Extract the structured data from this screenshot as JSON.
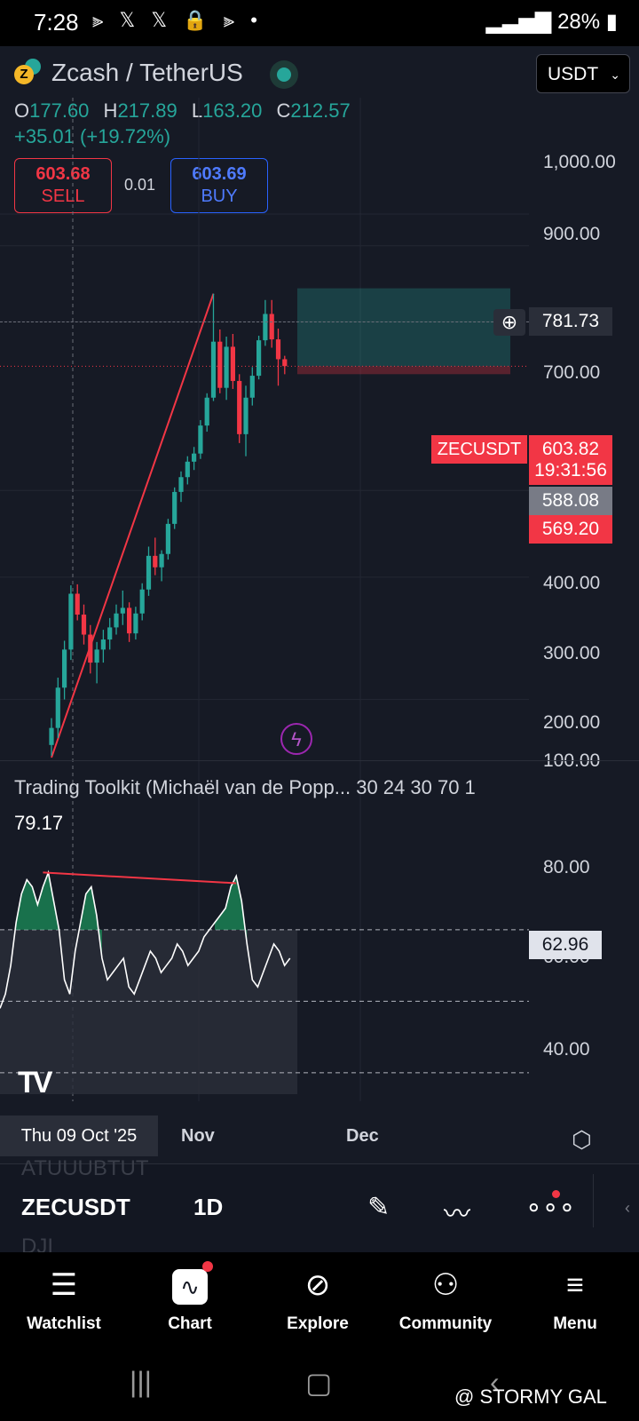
{
  "status_bar": {
    "time": "7:28",
    "notification_icons": "⫸ 𝕏 𝕏 🔒 ⫸ •",
    "battery": "28%"
  },
  "symbol": {
    "title": "Zcash / TetherUS",
    "currency": "USDT"
  },
  "ohlc": {
    "o_label": "O",
    "o": "177.60",
    "h_label": "H",
    "h": "217.89",
    "l_label": "L",
    "l": "163.20",
    "c_label": "C",
    "c": "212.57",
    "change": "+35.01 (+19.72%)"
  },
  "trade": {
    "sell_price": "603.68",
    "sell_label": "SELL",
    "spread": "0.01",
    "buy_price": "603.69",
    "buy_label": "BUY"
  },
  "price_axis": [
    "1,000.00",
    "900.00",
    "700.00",
    "400.00",
    "300.00",
    "200.00",
    "100.00"
  ],
  "price_tags": {
    "crosshair": "781.73",
    "symbol_label": "ZECUSDT",
    "last_price": "603.82",
    "countdown": "19:31:56",
    "level_gray": "588.08",
    "level_red": "569.20"
  },
  "indicator": {
    "title": "Trading Toolkit (Michaël van de Popp... 30 24 30 70 1",
    "value_label": "79.17",
    "axis": [
      "80.00",
      "40.00"
    ],
    "current": "62.96",
    "current_hidden_axis": "60.00"
  },
  "time_axis": {
    "date_tag": "Thu 09 Oct '25",
    "labels": [
      "Nov",
      "Dec"
    ]
  },
  "toolbar": {
    "symbol": "ZECUSDT",
    "interval": "1D",
    "ghost_top": "ATUUUBTUT",
    "ghost_bottom": "DJI"
  },
  "nav": [
    {
      "label": "Watchlist",
      "icon": "watchlist-icon"
    },
    {
      "label": "Chart",
      "icon": "chart-icon"
    },
    {
      "label": "Explore",
      "icon": "compass-icon"
    },
    {
      "label": "Community",
      "icon": "people-icon"
    },
    {
      "label": "Menu",
      "icon": "hamburger-icon"
    }
  ],
  "watermark": "@ STORMY GAL",
  "colors": {
    "up": "#26a69a",
    "down": "#f23645",
    "buy": "#2962ff",
    "background": "#161a25"
  },
  "chart_data": {
    "type": "candlestick",
    "title": "",
    "candles": [
      {
        "o": 172,
        "h": 188,
        "l": 166,
        "c": 182
      },
      {
        "o": 182,
        "h": 215,
        "l": 176,
        "c": 208
      },
      {
        "o": 208,
        "h": 243,
        "l": 200,
        "c": 236
      },
      {
        "o": 236,
        "h": 292,
        "l": 228,
        "c": 284
      },
      {
        "o": 284,
        "h": 293,
        "l": 260,
        "c": 265
      },
      {
        "o": 265,
        "h": 274,
        "l": 240,
        "c": 248
      },
      {
        "o": 248,
        "h": 256,
        "l": 218,
        "c": 226
      },
      {
        "o": 226,
        "h": 242,
        "l": 211,
        "c": 236
      },
      {
        "o": 236,
        "h": 252,
        "l": 226,
        "c": 244
      },
      {
        "o": 244,
        "h": 262,
        "l": 236,
        "c": 254
      },
      {
        "o": 254,
        "h": 274,
        "l": 248,
        "c": 266
      },
      {
        "o": 266,
        "h": 287,
        "l": 256,
        "c": 271
      },
      {
        "o": 271,
        "h": 276,
        "l": 242,
        "c": 249
      },
      {
        "o": 249,
        "h": 272,
        "l": 244,
        "c": 266
      },
      {
        "o": 266,
        "h": 294,
        "l": 260,
        "c": 288
      },
      {
        "o": 288,
        "h": 332,
        "l": 282,
        "c": 322
      },
      {
        "o": 322,
        "h": 342,
        "l": 302,
        "c": 310
      },
      {
        "o": 310,
        "h": 328,
        "l": 296,
        "c": 324
      },
      {
        "o": 324,
        "h": 364,
        "l": 318,
        "c": 358
      },
      {
        "o": 358,
        "h": 404,
        "l": 352,
        "c": 398
      },
      {
        "o": 398,
        "h": 426,
        "l": 385,
        "c": 418
      },
      {
        "o": 418,
        "h": 448,
        "l": 408,
        "c": 440
      },
      {
        "o": 440,
        "h": 462,
        "l": 428,
        "c": 452
      },
      {
        "o": 452,
        "h": 505,
        "l": 444,
        "c": 496
      },
      {
        "o": 496,
        "h": 552,
        "l": 486,
        "c": 544
      },
      {
        "o": 544,
        "h": 768,
        "l": 538,
        "c": 655
      },
      {
        "o": 655,
        "h": 682,
        "l": 552,
        "c": 562
      },
      {
        "o": 562,
        "h": 666,
        "l": 540,
        "c": 644
      },
      {
        "o": 644,
        "h": 672,
        "l": 560,
        "c": 575
      },
      {
        "o": 575,
        "h": 588,
        "l": 468,
        "c": 482
      },
      {
        "o": 482,
        "h": 566,
        "l": 448,
        "c": 544
      },
      {
        "o": 544,
        "h": 602,
        "l": 530,
        "c": 585
      },
      {
        "o": 585,
        "h": 668,
        "l": 578,
        "c": 658
      },
      {
        "o": 658,
        "h": 752,
        "l": 646,
        "c": 718
      },
      {
        "o": 718,
        "h": 752,
        "l": 642,
        "c": 660
      },
      {
        "o": 660,
        "h": 684,
        "l": 566,
        "c": 618
      },
      {
        "o": 618,
        "h": 625,
        "l": 588,
        "c": 604
      }
    ],
    "trendline": [
      [
        0,
        165
      ],
      [
        25,
        768
      ]
    ],
    "long_position": {
      "entry": 603.82,
      "target": 781.73,
      "stop": 588.08
    },
    "ylim": [
      155,
      1100
    ],
    "y_scale": "log",
    "oscillator": [
      48,
      52,
      60,
      72,
      80,
      84,
      82,
      77,
      82,
      86,
      78,
      70,
      56,
      52,
      64,
      72,
      80,
      82,
      74,
      62,
      56,
      58,
      60,
      62,
      54,
      52,
      56,
      60,
      64,
      62,
      58,
      60,
      62,
      66,
      64,
      60,
      62,
      64,
      68,
      70,
      72,
      74,
      76,
      82,
      85,
      78,
      66,
      56,
      54,
      58,
      62,
      66,
      64,
      60,
      62
    ],
    "oscillator_levels": [
      70,
      50,
      30
    ],
    "oscillator_ylim": [
      24,
      102
    ]
  }
}
